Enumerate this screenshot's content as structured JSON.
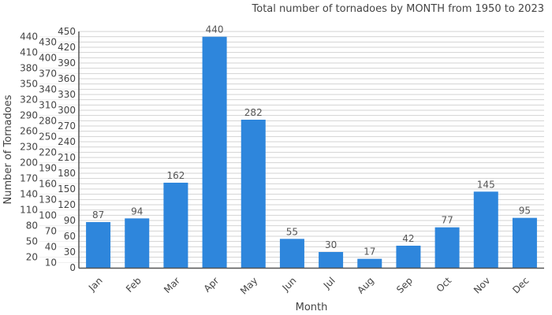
{
  "chart_data": {
    "type": "bar",
    "title": "Total number of tornadoes by MONTH from 1950 to 2023",
    "xlabel": "Month",
    "ylabel": "Number of Tornadoes",
    "categories": [
      "Jan",
      "Feb",
      "Mar",
      "Apr",
      "May",
      "Jun",
      "Jul",
      "Aug",
      "Sep",
      "Oct",
      "Nov",
      "Dec"
    ],
    "values": [
      87,
      94,
      162,
      440,
      282,
      55,
      30,
      17,
      42,
      77,
      145,
      95
    ],
    "ylim": [
      0,
      450
    ],
    "ytick_step": 10,
    "grid": true,
    "bar_color": "#2e86dc"
  }
}
